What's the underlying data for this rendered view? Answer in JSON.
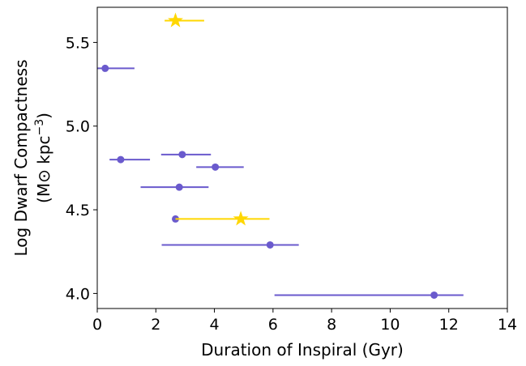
{
  "chart_data": {
    "type": "scatter",
    "xlabel": "Duration of Inspiral (Gyr)",
    "ylabel_line1": "Log Dwarf Compactness",
    "ylabel_line2_prefix": "(M⊙ kpc",
    "ylabel_line2_sup": "−3",
    "ylabel_line2_suffix": ")",
    "xlim": [
      0,
      14
    ],
    "ylim": [
      3.91,
      5.71
    ],
    "xticks": [
      0,
      2,
      4,
      6,
      8,
      10,
      12,
      14
    ],
    "xtick_labels": [
      "0",
      "2",
      "4",
      "6",
      "8",
      "10",
      "12",
      "14"
    ],
    "yticks": [
      4.0,
      4.5,
      5.0,
      5.5
    ],
    "ytick_labels": [
      "4.0",
      "4.5",
      "5.0",
      "5.5"
    ],
    "grid": false,
    "series": [
      {
        "marker": "circle",
        "color": "#6a5acd",
        "points": [
          {
            "x": 0.27,
            "y": 5.345,
            "xmin": 0.0,
            "xmax": 1.27
          },
          {
            "x": 0.8,
            "y": 4.8,
            "xmin": 0.42,
            "xmax": 1.8
          },
          {
            "x": 2.9,
            "y": 4.83,
            "xmin": 2.18,
            "xmax": 3.88
          },
          {
            "x": 4.03,
            "y": 4.755,
            "xmin": 3.38,
            "xmax": 5.0
          },
          {
            "x": 2.8,
            "y": 4.635,
            "xmin": 1.48,
            "xmax": 3.8
          },
          {
            "x": 2.67,
            "y": 4.445,
            "xmin": 2.67,
            "xmax": 2.67
          },
          {
            "x": 5.9,
            "y": 4.29,
            "xmin": 2.2,
            "xmax": 6.88
          },
          {
            "x": 11.5,
            "y": 3.99,
            "xmin": 6.05,
            "xmax": 12.5
          }
        ]
      },
      {
        "marker": "star",
        "color": "#ffd700",
        "points": [
          {
            "x": 2.67,
            "y": 5.63,
            "xmin": 2.3,
            "xmax": 3.65
          },
          {
            "x": 4.9,
            "y": 4.445,
            "xmin": 2.67,
            "xmax": 5.88
          }
        ]
      }
    ]
  }
}
